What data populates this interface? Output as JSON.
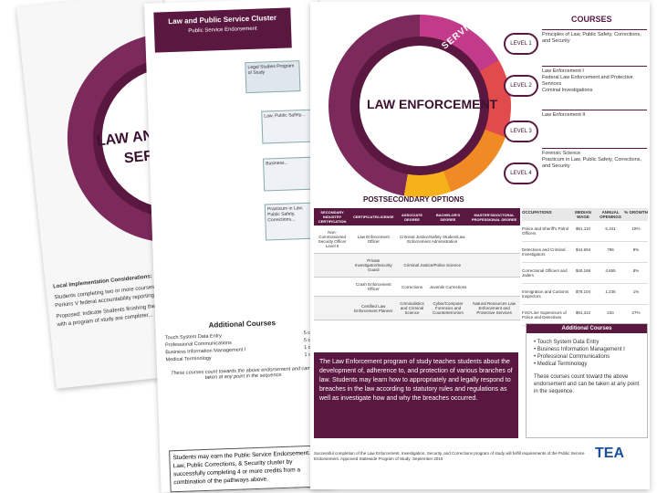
{
  "page1": {
    "title_line1": "LAW AND",
    "title_line2": "SERV",
    "notes_heading": "Local Implementation Considerations:",
    "notes_line1": "Students completing two or more courses...",
    "notes_line2": "Perkins V federal accountability reporting...",
    "notes_line3": "Proposed: Indicate Students finishing the...",
    "notes_line4": "with a program of study are completer..."
  },
  "page2": {
    "header_title": "Law and Public Service Cluster",
    "header_subtitle": "Public Service Endorsement",
    "box_top": "Legal Studies\nProgram of Study",
    "box1": "Law, Public Safety...",
    "box2": "Business...",
    "box3": "Practicum in Law, Public Safety, Corrections...",
    "additional_title": "Additional Courses",
    "additional": [
      {
        "name": "Touch System Data Entry",
        "credit": ".5 credit"
      },
      {
        "name": "Professional Communications",
        "credit": ".5 credit"
      },
      {
        "name": "Business Information Management I",
        "credit": "1 credit"
      },
      {
        "name": "Medical Terminology",
        "credit": "1 credit"
      }
    ],
    "additional_note": "These courses count towards the above endorsement and can be taken at any point in the sequence.",
    "footer": "Students may earn the Public Service Endorsement... the Law, Public Corrections, & Security cluster by successfully completing 4 or more credits from a combination of the pathways above."
  },
  "page3": {
    "arc_label": "LAW AND PUBLIC SERVICE",
    "program_title": "LAW ENFORCEMENT",
    "courses_heading": "COURSES",
    "levels": [
      "LEVEL 1",
      "LEVEL 2",
      "LEVEL 3",
      "LEVEL 4"
    ],
    "courses": [
      "Principles of Law, Public Safety, Corrections, and Security",
      "Law Enforcement I\nFederal Law Enforcement and Protective Services\nCriminal Investigations",
      "Law Enforcement II",
      "Forensic Science\nPracticum in Law, Public Safety, Corrections, and Security"
    ],
    "postsecondary_heading": "POSTSECONDARY OPTIONS",
    "table_headers": [
      "SECONDARY INDUSTRY CERTIFICATION",
      "CERTIFICATE/LICENSE",
      "ASSOCIATE DEGREE",
      "BACHELOR'S DEGREE",
      "MASTER'S/DOCTORAL PROFESSIONAL DEGREE"
    ],
    "table_rows": [
      [
        "Non-Commissioned Security Officer Level II",
        "Law Enforcement Officer",
        "Criminal Justice/Safety Studies/Law Enforcement Administration",
        "",
        ""
      ],
      [
        "",
        "Private Investigator/Security Guard",
        "Criminal Justice/Police Science",
        "",
        ""
      ],
      [
        "",
        "Crash Enforcement Officer",
        "Corrections",
        "Juvenile Corrections",
        ""
      ],
      [
        "",
        "Certified Law Enforcement Planner",
        "Criminalistics and Criminal Science",
        "Cyber/Computer Forensics and Counterterrorism",
        "Natural Resources Law Enforcement and Protective Services"
      ]
    ],
    "occupations_header": [
      "OCCUPATIONS",
      "MEDIAN WAGE",
      "ANNUAL OPENINGS",
      "% GROWTH"
    ],
    "occupations": [
      [
        "Police and Sheriff's Patrol Officers",
        "$61,110",
        "5,341",
        "18%"
      ],
      [
        "Detectives and Criminal Investigators",
        "$44,694",
        "796",
        "9%"
      ],
      [
        "Correctional Officers and Jailers",
        "$40,186",
        "4,655",
        "8%"
      ],
      [
        "Immigration and Customs Inspectors",
        "$78,104",
        "1,236",
        "1%"
      ],
      [
        "First-Line Supervisors of Police and Detectives",
        "$91,312",
        "233",
        "27%"
      ]
    ],
    "description": "The Law Enforcement program of study teaches students about the development of, adherence to, and protection of various branches of law. Students may learn how to appropriately and legally respond to breaches in the law according to statutory rules and regulations as well as investigate how and why the breaches occurred.",
    "additional_title": "Additional Courses",
    "additional": [
      "Touch System Data Entry",
      "Business Information Management I",
      "Professional Communications",
      "Medical Terminology"
    ],
    "additional_note": "These courses count toward the above endorsement and can be taken at any point in the sequence.",
    "bottom_text": "Successful completion of the Law Enforcement, Investigation, Security, and Corrections program of study will fulfill requirements of the Public Service Endorsement. Approved Statewide Program of Study: September 2019",
    "logo": "TEA"
  },
  "colors": {
    "plum": "#5a1740",
    "magenta": "#c23b8a",
    "orange": "#f08a24",
    "gold": "#f5b21b"
  }
}
